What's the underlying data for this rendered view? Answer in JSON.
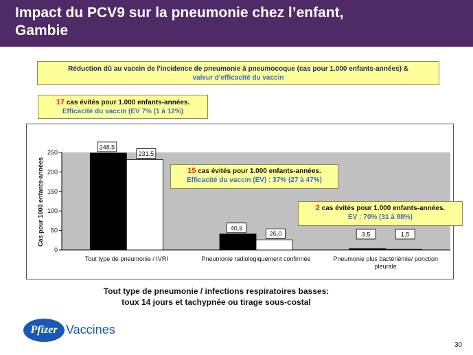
{
  "slide": {
    "title_line1": "Impact du PCV9 sur la pneumonie chez l’enfant,",
    "title_line2": "Gambie",
    "box_top_line1": "Réduction dû au vaccin de l'incidence de pneumonie à pneumocoque (cas pour 1.000 enfants-années) &",
    "box_top_line2": "valeur d'efficacité du vaccin",
    "box_small_num": "17",
    "box_small_text": " cas évités pour 1.000 enfants-années.",
    "box_small_line2_a": "Efficacité du vaccin (",
    "box_small_line2_b": "EV 7% (1 à 12%)",
    "box_small_line2_c": "",
    "ann1_num": "15",
    "ann1_text": " cas évités pour 1.000 enfants-années.",
    "ann1_line2_a": "Efficacité du vaccin (EV)",
    "ann1_line2_b": " : 37% (27 à 47%)",
    "ann2_num": "2",
    "ann2_text": " cas évités pour 1.000 enfants-années.",
    "ann2_line2": "EV :  70% (31 à 88%)",
    "footnote_line1": "Tout type de pneumonie / infections respiratoires basses:",
    "footnote_line2": "toux 14 jours et tachypnée ou tirage sous-costal",
    "logo_text": "Pfizer",
    "brand_text": "Vaccines",
    "page_number": "30",
    "colors": {
      "header": "#4e2a66",
      "box_fill": "#ffff99",
      "plot_bg": "#c0c0c0",
      "accent_red": "#e8202a",
      "accent_blue": "#3b6cc6"
    }
  },
  "chart_data": {
    "type": "bar",
    "ylabel": "Cas pour 1000 enfants-années",
    "ylim": [
      0,
      250
    ],
    "yticks": [
      "0",
      "50",
      "100",
      "150",
      "200",
      "250"
    ],
    "categories": [
      "Tout type de pneumonie / IVRI",
      "Pneumonie radiologiquement confirmée",
      "Pneumonie plus bactériémie/ ponction pleurale"
    ],
    "series": [
      {
        "color": "#000000",
        "values": [
          248.5,
          40.9,
          3.5
        ],
        "labels": [
          "248,5",
          "40,9",
          "3,5"
        ]
      },
      {
        "color": "#ffffff",
        "values": [
          231.5,
          26.0,
          1.5
        ],
        "labels": [
          "231,5",
          "26,0",
          "1,5"
        ]
      }
    ],
    "grid": false
  }
}
